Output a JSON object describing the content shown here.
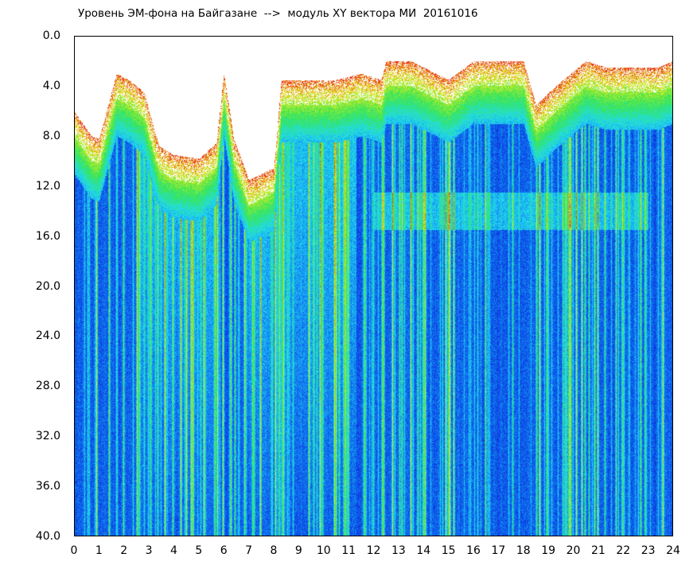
{
  "title": "Уровень ЭМ-фона на Байгазане  -->  модуль XY вектора МИ  20161016",
  "chart_data": {
    "type": "heatmap",
    "title": "Уровень ЭМ-фона на Байгазане  -->  модуль XY вектора МИ  20161016",
    "xlabel": "",
    "ylabel": "",
    "x_ticks": [
      "0",
      "1",
      "2",
      "3",
      "4",
      "5",
      "6",
      "7",
      "8",
      "9",
      "10",
      "11",
      "12",
      "13",
      "14",
      "15",
      "16",
      "17",
      "18",
      "19",
      "20",
      "21",
      "22",
      "23",
      "24"
    ],
    "y_ticks": [
      "0.0",
      "4.0",
      "8.0",
      "12.0",
      "16.0",
      "20.0",
      "24.0",
      "28.0",
      "32.0",
      "36.0",
      "40.0"
    ],
    "xlim": [
      0,
      24
    ],
    "ylim": [
      0,
      40
    ],
    "y_inverted": true,
    "colormap": [
      "#0a14d2",
      "#0f6ef0",
      "#22dcf0",
      "#36e650",
      "#e8ec28",
      "#e81e14"
    ],
    "white_colour": "#ffffff",
    "signal_ceiling_by_hour": [
      [
        0,
        6.0
      ],
      [
        0.7,
        8.0
      ],
      [
        1.0,
        8.2
      ],
      [
        1.7,
        3.0
      ],
      [
        2.2,
        3.5
      ],
      [
        2.8,
        4.5
      ],
      [
        3.4,
        8.8
      ],
      [
        4.0,
        9.5
      ],
      [
        5.0,
        9.8
      ],
      [
        5.7,
        8.5
      ],
      [
        6.0,
        3.0
      ],
      [
        6.4,
        8.2
      ],
      [
        7.0,
        11.5
      ],
      [
        8.0,
        10.5
      ],
      [
        8.3,
        3.5
      ],
      [
        9.5,
        3.5
      ],
      [
        10.5,
        3.5
      ],
      [
        11.5,
        3.0
      ],
      [
        12.3,
        3.5
      ],
      [
        12.5,
        2.0
      ],
      [
        13.5,
        2.0
      ],
      [
        15.0,
        3.5
      ],
      [
        16.0,
        2.0
      ],
      [
        17.0,
        2.0
      ],
      [
        18.0,
        2.0
      ],
      [
        18.5,
        5.5
      ],
      [
        19.3,
        4.0
      ],
      [
        20.5,
        2.0
      ],
      [
        21.3,
        2.5
      ],
      [
        22.5,
        2.5
      ],
      [
        23.4,
        2.5
      ],
      [
        24,
        2.0
      ]
    ]
  }
}
